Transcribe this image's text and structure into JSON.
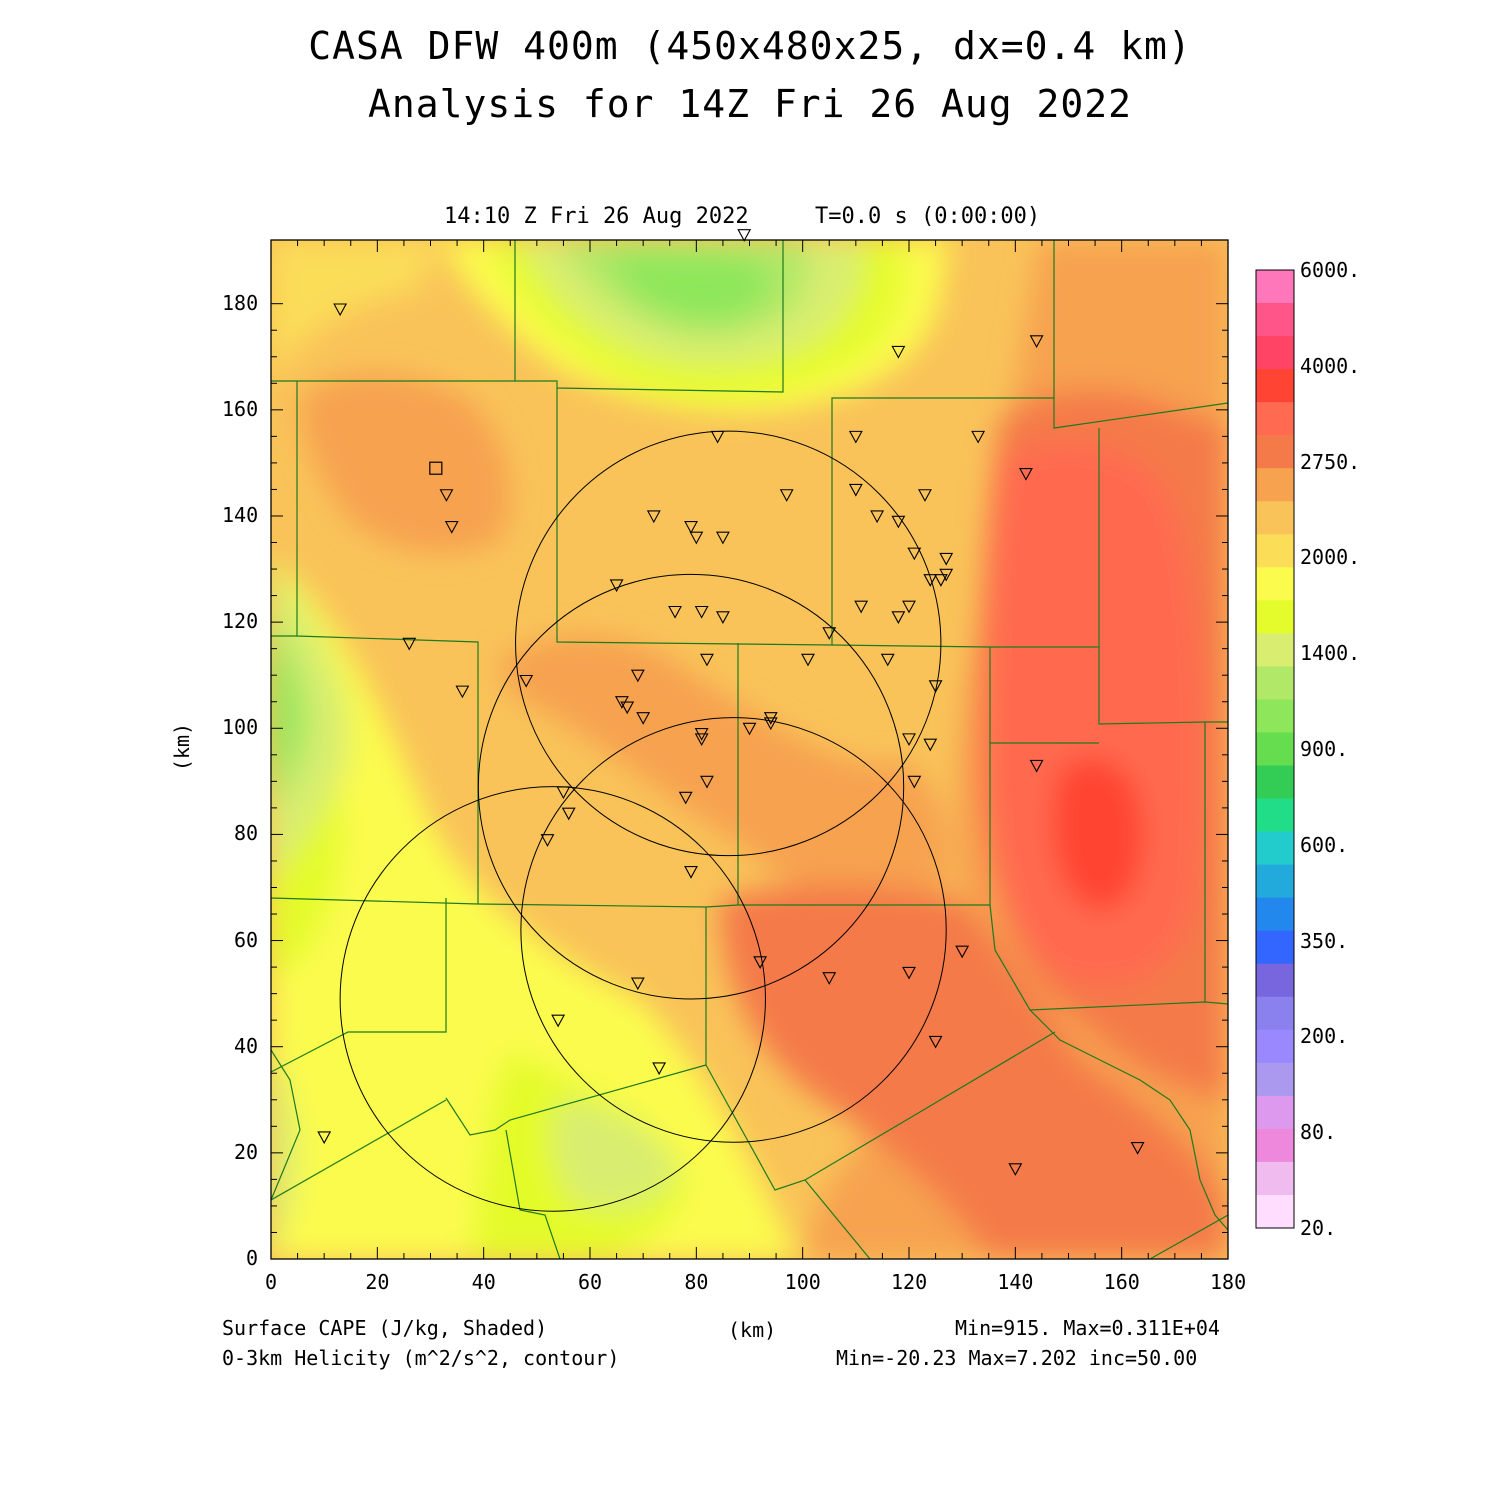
{
  "header": {
    "title_line1": "CASA DFW 400m (450x480x25, dx=0.4 km)",
    "title_line2": "Analysis for 14Z Fri 26 Aug 2022",
    "valid_time": "14:10 Z Fri 26 Aug 2022",
    "model_time": "T=0.0 s (0:00:00)"
  },
  "axes": {
    "xlabel": "(km)",
    "ylabel": "(km)",
    "x_ticks": [
      "0",
      "20",
      "40",
      "60",
      "80",
      "100",
      "120",
      "140",
      "160",
      "180"
    ],
    "y_ticks": [
      "0",
      "20",
      "40",
      "60",
      "80",
      "100",
      "120",
      "140",
      "160",
      "180"
    ],
    "xlim": [
      0,
      180
    ],
    "ylim": [
      0,
      192
    ]
  },
  "colorbar": {
    "labels": [
      "6000.",
      "4000.",
      "2750.",
      "2000.",
      "1400.",
      "900.",
      "600.",
      "350.",
      "200.",
      "80.",
      "20."
    ],
    "colors": [
      "#ff77bb",
      "#ff5588",
      "#ff4466",
      "#ff4433",
      "#ff6a50",
      "#f47a4a",
      "#f7a24f",
      "#f9c359",
      "#fbdd58",
      "#fbfb4d",
      "#e4fb2c",
      "#d9ee70",
      "#b2e868",
      "#8ee75a",
      "#66dd4f",
      "#33cc55",
      "#22dd88",
      "#22cccc",
      "#22aadd",
      "#2288ee",
      "#3366ff",
      "#7766dd",
      "#8a80ee",
      "#9988ff",
      "#aa99ee",
      "#dd99ee",
      "#ee88dd",
      "#f0bbee",
      "#ffddff"
    ]
  },
  "footer": {
    "left1": "Surface CAPE (J/kg, Shaded)",
    "left2": "0-3km Helicity (m^2/s^2, contour)",
    "center": "(km)",
    "right1": "Min=915. Max=0.311E+04",
    "right2": "Min=-20.23 Max=7.202 inc=50.00"
  },
  "radars": [
    {
      "cx": 86,
      "cy": 116,
      "r": 40
    },
    {
      "cx": 79,
      "cy": 89,
      "r": 40
    },
    {
      "cx": 87,
      "cy": 62,
      "r": 40
    },
    {
      "cx": 53,
      "cy": 49,
      "r": 40
    }
  ],
  "stations": [
    [
      13,
      179
    ],
    [
      89,
      193
    ],
    [
      118,
      171
    ],
    [
      144,
      173
    ],
    [
      84,
      155
    ],
    [
      110,
      155
    ],
    [
      133,
      155
    ],
    [
      142,
      148
    ],
    [
      33,
      144
    ],
    [
      34,
      138
    ],
    [
      72,
      140
    ],
    [
      79,
      138
    ],
    [
      80,
      136
    ],
    [
      85,
      136
    ],
    [
      97,
      144
    ],
    [
      110,
      145
    ],
    [
      114,
      140
    ],
    [
      118,
      139
    ],
    [
      123,
      144
    ],
    [
      121,
      133
    ],
    [
      127,
      132
    ],
    [
      127,
      129
    ],
    [
      126,
      128
    ],
    [
      124,
      128
    ],
    [
      65,
      127
    ],
    [
      76,
      122
    ],
    [
      81,
      122
    ],
    [
      85,
      121
    ],
    [
      111,
      123
    ],
    [
      120,
      123
    ],
    [
      118,
      121
    ],
    [
      105,
      118
    ],
    [
      26,
      116
    ],
    [
      36,
      107
    ],
    [
      48,
      109
    ],
    [
      66,
      105
    ],
    [
      67,
      104
    ],
    [
      69,
      110
    ],
    [
      70,
      102
    ],
    [
      82,
      113
    ],
    [
      101,
      113
    ],
    [
      116,
      113
    ],
    [
      125,
      108
    ],
    [
      94,
      102
    ],
    [
      94,
      101
    ],
    [
      90,
      100
    ],
    [
      81,
      99
    ],
    [
      81,
      98
    ],
    [
      120,
      98
    ],
    [
      124,
      97
    ],
    [
      144,
      93
    ],
    [
      55,
      88
    ],
    [
      56,
      84
    ],
    [
      82,
      90
    ],
    [
      78,
      87
    ],
    [
      52,
      79
    ],
    [
      79,
      73
    ],
    [
      121,
      90
    ],
    [
      92,
      56
    ],
    [
      69,
      52
    ],
    [
      105,
      53
    ],
    [
      120,
      54
    ],
    [
      130,
      58
    ],
    [
      54,
      45
    ],
    [
      73,
      36
    ],
    [
      125,
      41
    ],
    [
      10,
      23
    ],
    [
      140,
      17
    ],
    [
      163,
      21
    ]
  ],
  "square_marker": [
    31,
    149
  ]
}
